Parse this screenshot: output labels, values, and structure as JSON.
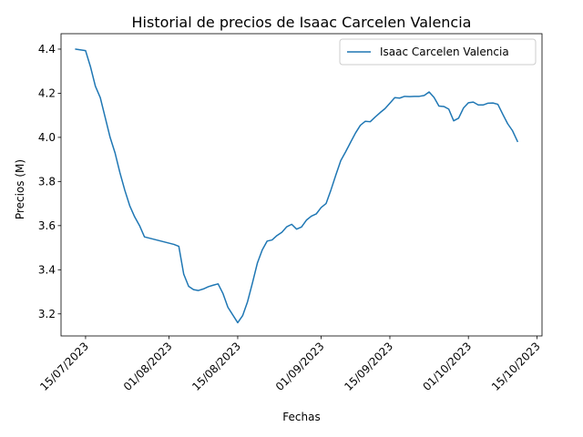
{
  "chart_data": {
    "type": "line",
    "title": "Historial de precios de Isaac Carcelen Valencia",
    "xlabel": "Fechas",
    "ylabel": "Precios (M)",
    "legend_position": "top-right",
    "grid": false,
    "ylim": [
      3.1,
      4.47
    ],
    "xlim": [
      "2023-07-10",
      "2023-10-16"
    ],
    "x_ticks": [
      {
        "date": "2023-07-15",
        "label": "15/07/2023"
      },
      {
        "date": "2023-08-01",
        "label": "01/08/2023"
      },
      {
        "date": "2023-08-15",
        "label": "15/08/2023"
      },
      {
        "date": "2023-09-01",
        "label": "01/09/2023"
      },
      {
        "date": "2023-09-15",
        "label": "15/09/2023"
      },
      {
        "date": "2023-10-01",
        "label": "01/10/2023"
      },
      {
        "date": "2023-10-15",
        "label": "15/10/2023"
      }
    ],
    "y_ticks": [
      {
        "value": 3.2,
        "label": "3.2"
      },
      {
        "value": 3.4,
        "label": "3.4"
      },
      {
        "value": 3.6,
        "label": "3.6"
      },
      {
        "value": 3.8,
        "label": "3.8"
      },
      {
        "value": 4.0,
        "label": "4.0"
      },
      {
        "value": 4.2,
        "label": "4.2"
      },
      {
        "value": 4.4,
        "label": "4.4"
      }
    ],
    "series": [
      {
        "name": "Isaac Carcelen Valencia",
        "color": "#1f77b4",
        "points": [
          [
            "2023-07-13",
            4.4
          ],
          [
            "2023-07-15",
            4.393
          ],
          [
            "2023-07-16",
            4.32
          ],
          [
            "2023-07-17",
            4.232
          ],
          [
            "2023-07-18",
            4.18
          ],
          [
            "2023-07-19",
            4.09
          ],
          [
            "2023-07-20",
            4.0
          ],
          [
            "2023-07-21",
            3.93
          ],
          [
            "2023-07-22",
            3.84
          ],
          [
            "2023-07-23",
            3.76
          ],
          [
            "2023-07-24",
            3.69
          ],
          [
            "2023-07-25",
            3.64
          ],
          [
            "2023-07-26",
            3.6
          ],
          [
            "2023-07-27",
            3.549
          ],
          [
            "2023-08-02",
            3.515
          ],
          [
            "2023-08-03",
            3.506
          ],
          [
            "2023-08-04",
            3.38
          ],
          [
            "2023-08-05",
            3.325
          ],
          [
            "2023-08-06",
            3.31
          ],
          [
            "2023-08-07",
            3.306
          ],
          [
            "2023-08-08",
            3.313
          ],
          [
            "2023-08-09",
            3.323
          ],
          [
            "2023-08-10",
            3.33
          ],
          [
            "2023-08-11",
            3.336
          ],
          [
            "2023-08-12",
            3.292
          ],
          [
            "2023-08-13",
            3.23
          ],
          [
            "2023-08-15",
            3.16
          ],
          [
            "2023-08-16",
            3.192
          ],
          [
            "2023-08-17",
            3.255
          ],
          [
            "2023-08-18",
            3.34
          ],
          [
            "2023-08-19",
            3.43
          ],
          [
            "2023-08-20",
            3.49
          ],
          [
            "2023-08-21",
            3.53
          ],
          [
            "2023-08-22",
            3.535
          ],
          [
            "2023-08-23",
            3.555
          ],
          [
            "2023-08-24",
            3.57
          ],
          [
            "2023-08-25",
            3.595
          ],
          [
            "2023-08-26",
            3.606
          ],
          [
            "2023-08-27",
            3.584
          ],
          [
            "2023-08-28",
            3.594
          ],
          [
            "2023-08-29",
            3.625
          ],
          [
            "2023-08-30",
            3.643
          ],
          [
            "2023-08-31",
            3.653
          ],
          [
            "2023-09-01",
            3.682
          ],
          [
            "2023-09-02",
            3.7
          ],
          [
            "2023-09-03",
            3.762
          ],
          [
            "2023-09-04",
            3.83
          ],
          [
            "2023-09-05",
            3.895
          ],
          [
            "2023-09-06",
            3.935
          ],
          [
            "2023-09-07",
            3.978
          ],
          [
            "2023-09-08",
            4.02
          ],
          [
            "2023-09-09",
            4.055
          ],
          [
            "2023-09-10",
            4.073
          ],
          [
            "2023-09-11",
            4.071
          ],
          [
            "2023-09-12",
            4.092
          ],
          [
            "2023-09-13",
            4.112
          ],
          [
            "2023-09-14",
            4.13
          ],
          [
            "2023-09-15",
            4.155
          ],
          [
            "2023-09-16",
            4.18
          ],
          [
            "2023-09-17",
            4.178
          ],
          [
            "2023-09-18",
            4.186
          ],
          [
            "2023-09-19",
            4.185
          ],
          [
            "2023-09-20",
            4.186
          ],
          [
            "2023-09-21",
            4.186
          ],
          [
            "2023-09-22",
            4.19
          ],
          [
            "2023-09-23",
            4.206
          ],
          [
            "2023-09-24",
            4.181
          ],
          [
            "2023-09-25",
            4.142
          ],
          [
            "2023-09-26",
            4.14
          ],
          [
            "2023-09-27",
            4.128
          ],
          [
            "2023-09-28",
            4.075
          ],
          [
            "2023-09-29",
            4.087
          ],
          [
            "2023-09-30",
            4.133
          ],
          [
            "2023-10-01",
            4.157
          ],
          [
            "2023-10-02",
            4.16
          ],
          [
            "2023-10-03",
            4.147
          ],
          [
            "2023-10-04",
            4.147
          ],
          [
            "2023-10-05",
            4.155
          ],
          [
            "2023-10-06",
            4.156
          ],
          [
            "2023-10-07",
            4.15
          ],
          [
            "2023-10-08",
            4.105
          ],
          [
            "2023-10-09",
            4.062
          ],
          [
            "2023-10-10",
            4.03
          ],
          [
            "2023-10-11",
            3.982
          ]
        ]
      }
    ]
  }
}
